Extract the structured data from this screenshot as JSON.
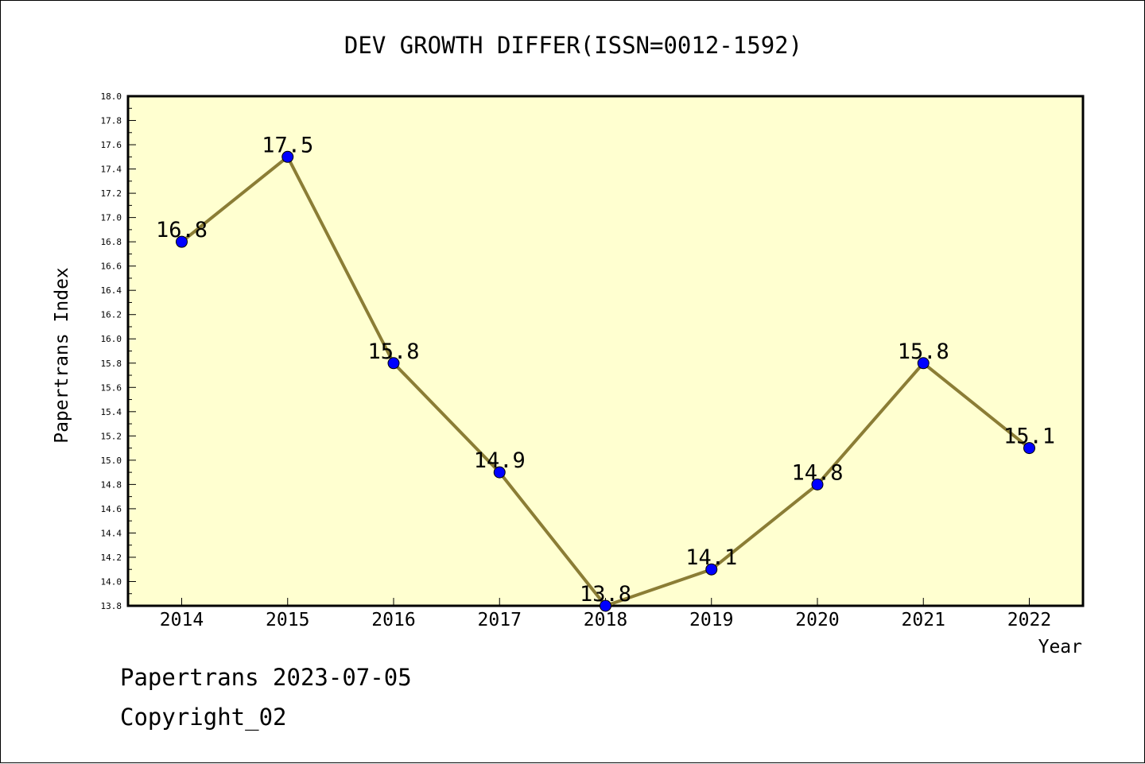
{
  "chart_data": {
    "type": "line",
    "title": "DEV GROWTH DIFFER(ISSN=0012-1592)",
    "xlabel": "Year",
    "ylabel": "Papertrans Index",
    "categories": [
      "2014",
      "2015",
      "2016",
      "2017",
      "2018",
      "2019",
      "2020",
      "2021",
      "2022"
    ],
    "series": [
      {
        "values": [
          16.8,
          17.5,
          15.8,
          14.9,
          13.8,
          14.1,
          14.8,
          15.8,
          15.1
        ],
        "labels": [
          "16.8",
          "17.5",
          "15.8",
          "14.9",
          "13.8",
          "14.1",
          "14.8",
          "15.8",
          "15.1"
        ]
      }
    ],
    "ylim": [
      13.8,
      18.0
    ],
    "yticks": [
      "13.8",
      "14.0",
      "14.2",
      "14.4",
      "14.6",
      "14.8",
      "15.0",
      "15.2",
      "15.4",
      "15.6",
      "15.8",
      "16.0",
      "16.2",
      "16.4",
      "16.6",
      "16.8",
      "17.0",
      "17.2",
      "17.4",
      "17.6",
      "17.8",
      "18.0"
    ],
    "grid": false,
    "colors": {
      "plot_background": "#ffffd0",
      "line": "#8b7d35",
      "marker": "#0000ff"
    }
  },
  "footer": {
    "line1": "Papertrans 2023-07-05",
    "line2": "Copyright_02"
  }
}
